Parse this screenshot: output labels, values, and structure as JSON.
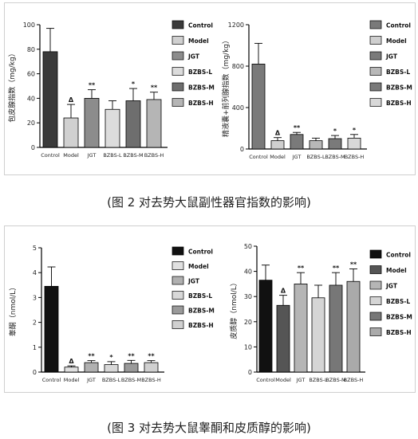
{
  "captions": {
    "fig2": "(图 2 对去势大鼠副性器官指数的影响)",
    "fig3": "(图 3 对去势大鼠睾酮和皮质醇的影响)"
  },
  "chart_data": [
    {
      "type": "bar",
      "ylabel": "包皮腺指数（mg/kg）",
      "ylim": [
        0,
        100
      ],
      "yticks": [
        0,
        20,
        40,
        60,
        80,
        100
      ],
      "categories": [
        "Control",
        "Model",
        "JGT",
        "BZBS-L",
        "BZBS-M",
        "BZBS-H"
      ],
      "values": [
        78,
        24,
        40,
        31,
        38,
        39
      ],
      "errors": [
        19,
        11,
        7,
        7,
        10,
        6
      ],
      "marks": [
        "",
        "Δ",
        "**",
        "",
        "*",
        "**"
      ],
      "fills": [
        "#3a3a3a",
        "#d0d0d0",
        "#8c8c8c",
        "#dcdcdc",
        "#6e6e6e",
        "#b5b5b5"
      ],
      "legend": [
        "Control",
        "Model",
        "JGT",
        "BZBS-L",
        "BZBS-M",
        "BZBS-H"
      ],
      "legend_placement": "right"
    },
    {
      "type": "bar",
      "ylabel": "精液囊+前列腺指数（mg/kg）",
      "ylim": [
        0,
        1200
      ],
      "yticks": [
        0,
        400,
        800,
        1200
      ],
      "categories": [
        "Control",
        "Model",
        "JGT",
        "BZBS-L",
        "BZBS-M",
        "BZBS-H"
      ],
      "values": [
        820,
        80,
        140,
        80,
        100,
        105
      ],
      "errors": [
        200,
        30,
        20,
        25,
        30,
        35
      ],
      "marks": [
        "",
        "Δ",
        "**",
        "",
        "*",
        "*"
      ],
      "fills": [
        "#7a7a7a",
        "#cfcfcf",
        "#7a7a7a",
        "#b8b8b8",
        "#7a7a7a",
        "#d8d8d8"
      ],
      "legend": [
        "Control",
        "Model",
        "JGT",
        "BZBS-L",
        "BZBS-M",
        "BZBS-H"
      ],
      "legend_placement": "right"
    },
    {
      "type": "bar",
      "ylabel": "睾酮（nmol/L）",
      "ylim": [
        0,
        5
      ],
      "yticks": [
        0,
        1,
        2,
        3,
        4,
        5
      ],
      "categories": [
        "Control",
        "Model",
        "JGT",
        "BZBS-L",
        "BZBS-M",
        "BZBS-H"
      ],
      "values": [
        3.45,
        0.2,
        0.38,
        0.3,
        0.35,
        0.38
      ],
      "errors": [
        0.78,
        0.05,
        0.08,
        0.12,
        0.12,
        0.08
      ],
      "marks": [
        "",
        "Δ",
        "**",
        "*",
        "**",
        "**"
      ],
      "fills": [
        "#111111",
        "#e0e0e0",
        "#b0b0b0",
        "#d8d8d8",
        "#9a9a9a",
        "#d0d0d0"
      ],
      "legend": [
        "Control",
        "Model",
        "JGT",
        "BZBS-L",
        "BZBS-M",
        "BZBS-H"
      ],
      "legend_placement": "right"
    },
    {
      "type": "bar",
      "ylabel": "皮质醇（nmol/L）",
      "ylim": [
        0,
        50
      ],
      "yticks": [
        0,
        10,
        20,
        30,
        40,
        50
      ],
      "categories": [
        "Control",
        "Model",
        "JGT",
        "BZBS-L",
        "BZBS-M",
        "BZBS-H"
      ],
      "values": [
        36.5,
        26.5,
        35,
        29.5,
        34.5,
        36
      ],
      "errors": [
        6,
        4,
        4.5,
        5,
        5,
        5
      ],
      "marks": [
        "",
        "Δ",
        "**",
        "",
        "**",
        "**"
      ],
      "fills": [
        "#111111",
        "#555555",
        "#b5b5b5",
        "#d5d5d5",
        "#777777",
        "#aaaaaa"
      ],
      "legend": [
        "Control",
        "Model",
        "JGT",
        "BZBS-L",
        "BZBS-M",
        "BZBS-H"
      ],
      "legend_placement": "right"
    }
  ]
}
